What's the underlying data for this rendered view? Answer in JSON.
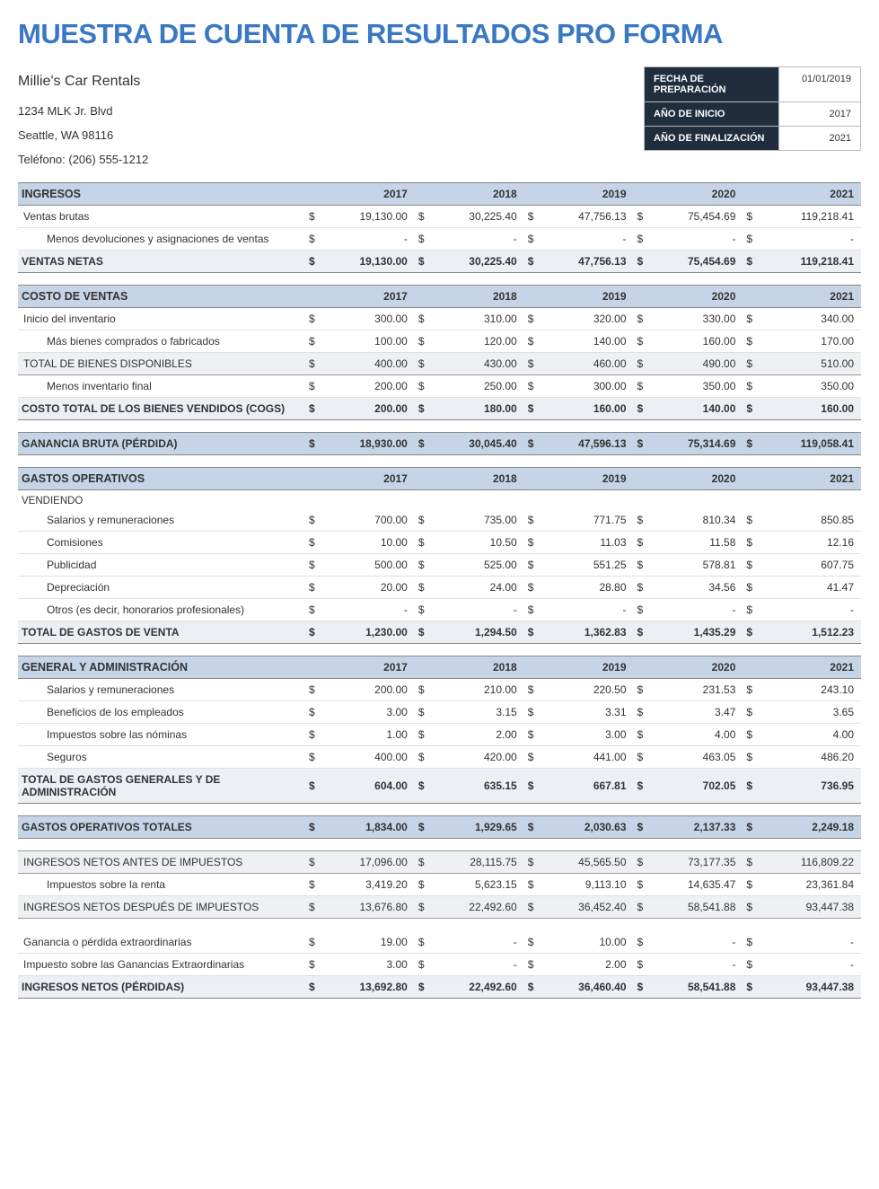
{
  "title": "MUESTRA DE CUENTA DE RESULTADOS PRO FORMA",
  "company": {
    "name": "Millie's Car Rentals",
    "address1": "1234 MLK Jr. Blvd",
    "address2": "Seattle, WA 98116",
    "phone": "Teléfono: (206) 555-1212"
  },
  "meta": {
    "prep_label": "FECHA DE PREPARACIÓN",
    "prep_value": "01/01/2019",
    "start_label": "AÑO DE INICIO",
    "start_value": "2017",
    "end_label": "AÑO DE FINALIZACIÓN",
    "end_value": "2021"
  },
  "years": [
    "2017",
    "2018",
    "2019",
    "2020",
    "2021"
  ],
  "currency": "$",
  "dash": "-",
  "colors": {
    "title": "#3a78c4",
    "header_bg": "#c5d4e6",
    "subtotal_bg": "#eceff4",
    "meta_label_bg": "#1f2d3d",
    "border": "#888"
  },
  "sections": {
    "ingresos": {
      "header": "INGRESOS",
      "ventas_brutas": {
        "label": "Ventas brutas",
        "v": [
          "19,130.00",
          "30,225.40",
          "47,756.13",
          "75,454.69",
          "119,218.41"
        ]
      },
      "devoluciones": {
        "label": "Menos devoluciones y asignaciones de ventas",
        "v": [
          "-",
          "-",
          "-",
          "-",
          "-"
        ]
      },
      "ventas_netas": {
        "label": "VENTAS NETAS",
        "v": [
          "19,130.00",
          "30,225.40",
          "47,756.13",
          "75,454.69",
          "119,218.41"
        ]
      }
    },
    "costo": {
      "header": "COSTO DE VENTAS",
      "inicio": {
        "label": "Inicio del inventario",
        "v": [
          "300.00",
          "310.00",
          "320.00",
          "330.00",
          "340.00"
        ]
      },
      "mas_bienes": {
        "label": "Más bienes comprados o fabricados",
        "v": [
          "100.00",
          "120.00",
          "140.00",
          "160.00",
          "170.00"
        ]
      },
      "total_disp": {
        "label": "TOTAL DE BIENES DISPONIBLES",
        "v": [
          "400.00",
          "430.00",
          "460.00",
          "490.00",
          "510.00"
        ]
      },
      "menos_inv": {
        "label": "Menos inventario final",
        "v": [
          "200.00",
          "250.00",
          "300.00",
          "350.00",
          "350.00"
        ]
      },
      "cogs": {
        "label": "COSTO TOTAL DE LOS BIENES VENDIDOS (COGS)",
        "v": [
          "200.00",
          "180.00",
          "160.00",
          "140.00",
          "160.00"
        ]
      },
      "ganancia_bruta": {
        "label": "GANANCIA BRUTA (PÉRDIDA)",
        "v": [
          "18,930.00",
          "30,045.40",
          "47,596.13",
          "75,314.69",
          "119,058.41"
        ]
      }
    },
    "gastos": {
      "header": "GASTOS OPERATIVOS",
      "vendiendo_label": "VENDIENDO",
      "salarios": {
        "label": "Salarios y remuneraciones",
        "v": [
          "700.00",
          "735.00",
          "771.75",
          "810.34",
          "850.85"
        ]
      },
      "comisiones": {
        "label": "Comisiones",
        "v": [
          "10.00",
          "10.50",
          "11.03",
          "11.58",
          "12.16"
        ]
      },
      "publicidad": {
        "label": "Publicidad",
        "v": [
          "500.00",
          "525.00",
          "551.25",
          "578.81",
          "607.75"
        ]
      },
      "depreciacion": {
        "label": "Depreciación",
        "v": [
          "20.00",
          "24.00",
          "28.80",
          "34.56",
          "41.47"
        ]
      },
      "otros": {
        "label": "Otros (es decir, honorarios profesionales)",
        "v": [
          "-",
          "-",
          "-",
          "-",
          "-"
        ]
      },
      "total_venta": {
        "label": "TOTAL DE GASTOS DE VENTA",
        "v": [
          "1,230.00",
          "1,294.50",
          "1,362.83",
          "1,435.29",
          "1,512.23"
        ]
      }
    },
    "ga": {
      "header": "GENERAL Y ADMINISTRACIÓN",
      "salarios": {
        "label": "Salarios y remuneraciones",
        "v": [
          "200.00",
          "210.00",
          "220.50",
          "231.53",
          "243.10"
        ]
      },
      "beneficios": {
        "label": "Beneficios de los empleados",
        "v": [
          "3.00",
          "3.15",
          "3.31",
          "3.47",
          "3.65"
        ]
      },
      "impuestos": {
        "label": "Impuestos sobre las nóminas",
        "v": [
          "1.00",
          "2.00",
          "3.00",
          "4.00",
          "4.00"
        ]
      },
      "seguros": {
        "label": "Seguros",
        "v": [
          "400.00",
          "420.00",
          "441.00",
          "463.05",
          "486.20"
        ]
      },
      "total_ga": {
        "label": "TOTAL DE GASTOS GENERALES Y DE ADMINISTRACIÓN",
        "v": [
          "604.00",
          "635.15",
          "667.81",
          "702.05",
          "736.95"
        ]
      }
    },
    "totales": {
      "gastos_op": {
        "label": "GASTOS OPERATIVOS TOTALES",
        "v": [
          "1,834.00",
          "1,929.65",
          "2,030.63",
          "2,137.33",
          "2,249.18"
        ]
      },
      "antes_imp": {
        "label": "INGRESOS NETOS ANTES DE IMPUESTOS",
        "v": [
          "17,096.00",
          "28,115.75",
          "45,565.50",
          "73,177.35",
          "116,809.22"
        ]
      },
      "imp_renta": {
        "label": "Impuestos sobre la renta",
        "v": [
          "3,419.20",
          "5,623.15",
          "9,113.10",
          "14,635.47",
          "23,361.84"
        ]
      },
      "despues_imp": {
        "label": "INGRESOS NETOS DESPUÉS DE IMPUESTOS",
        "v": [
          "13,676.80",
          "22,492.60",
          "36,452.40",
          "58,541.88",
          "93,447.38"
        ]
      },
      "extraord": {
        "label": "Ganancia o pérdida extraordinarias",
        "v": [
          "19.00",
          "-",
          "10.00",
          "-",
          "-"
        ]
      },
      "imp_extraord": {
        "label": "Impuesto sobre las Ganancias Extraordinarias",
        "v": [
          "3.00",
          "-",
          "2.00",
          "-",
          "-"
        ]
      },
      "netos": {
        "label": "INGRESOS NETOS (PÉRDIDAS)",
        "v": [
          "13,692.80",
          "22,492.60",
          "36,460.40",
          "58,541.88",
          "93,447.38"
        ]
      }
    }
  }
}
